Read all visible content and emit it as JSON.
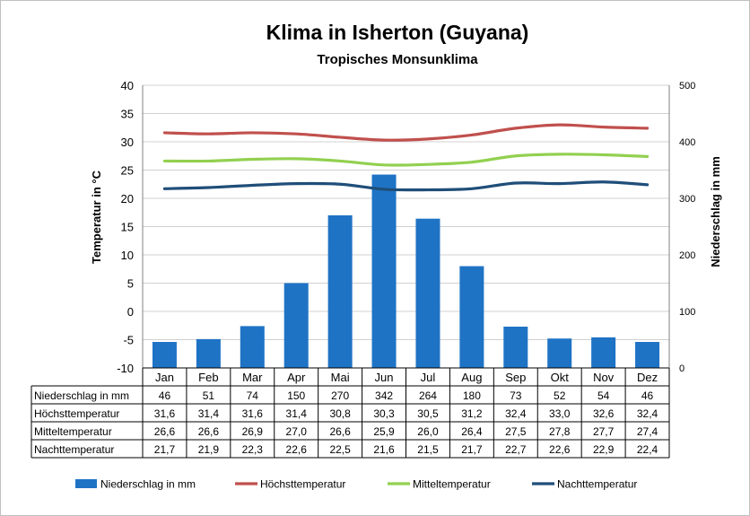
{
  "chart_data": {
    "type": "bar",
    "title": "Klima in Isherton (Guyana)",
    "subtitle": "Tropisches Monsunklima",
    "ylabel_left": "Temperatur in °C",
    "ylabel_right": "Niederschlag in mm",
    "ylim_left": [
      -10,
      40
    ],
    "ylim_right": [
      0,
      500
    ],
    "yticks_left": [
      "40",
      "35",
      "30",
      "25",
      "20",
      "15",
      "10",
      "5",
      "0",
      "-5",
      "-10"
    ],
    "yticks_right": [
      "500",
      "400",
      "300",
      "200",
      "100",
      "0"
    ],
    "grid": true,
    "legend_position": "bottom",
    "categories": [
      "Jan",
      "Feb",
      "Mar",
      "Apr",
      "Mai",
      "Jun",
      "Jul",
      "Aug",
      "Sep",
      "Okt",
      "Nov",
      "Dez"
    ],
    "series": [
      {
        "name": "Niederschlag in mm",
        "type": "bar",
        "axis": "right",
        "color": "#1f73c5",
        "values": [
          46,
          51,
          74,
          150,
          270,
          342,
          264,
          180,
          73,
          52,
          54,
          46
        ],
        "labels": [
          "46",
          "51",
          "74",
          "150",
          "270",
          "342",
          "264",
          "180",
          "73",
          "52",
          "54",
          "46"
        ]
      },
      {
        "name": "Höchsttemperatur",
        "type": "line",
        "axis": "left",
        "color": "#c0504d",
        "values": [
          31.6,
          31.4,
          31.6,
          31.4,
          30.8,
          30.3,
          30.5,
          31.2,
          32.4,
          33.0,
          32.6,
          32.4
        ],
        "labels": [
          "31,6",
          "31,4",
          "31,6",
          "31,4",
          "30,8",
          "30,3",
          "30,5",
          "31,2",
          "32,4",
          "33,0",
          "32,6",
          "32,4"
        ]
      },
      {
        "name": "Mitteltemperatur",
        "type": "line",
        "axis": "left",
        "color": "#92d050",
        "values": [
          26.6,
          26.6,
          26.9,
          27.0,
          26.6,
          25.9,
          26.0,
          26.4,
          27.5,
          27.8,
          27.7,
          27.4
        ],
        "labels": [
          "26,6",
          "26,6",
          "26,9",
          "27,0",
          "26,6",
          "25,9",
          "26,0",
          "26,4",
          "27,5",
          "27,8",
          "27,7",
          "27,4"
        ]
      },
      {
        "name": "Nachttemperatur",
        "type": "line",
        "axis": "left",
        "color": "#1f4e79",
        "values": [
          21.7,
          21.9,
          22.3,
          22.6,
          22.5,
          21.6,
          21.5,
          21.7,
          22.7,
          22.6,
          22.9,
          22.4
        ],
        "labels": [
          "21,7",
          "21,9",
          "22,3",
          "22,6",
          "22,5",
          "21,6",
          "21,5",
          "21,7",
          "22,7",
          "22,6",
          "22,9",
          "22,4"
        ]
      }
    ]
  }
}
